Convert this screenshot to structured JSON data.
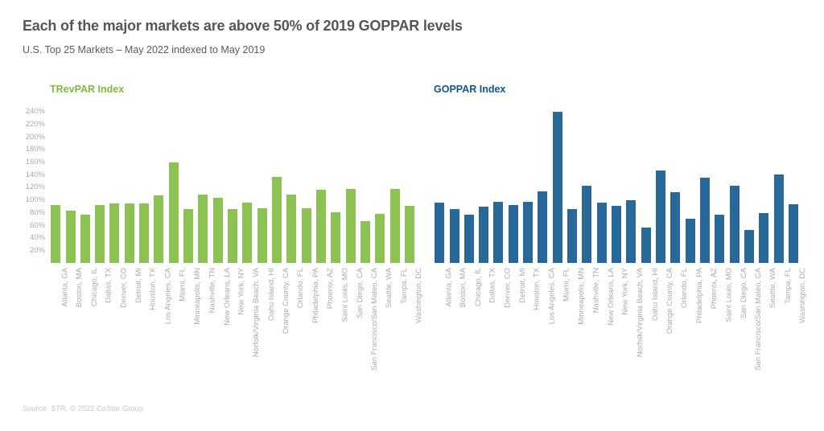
{
  "header": {
    "title": "Each of the major markets are above 50% of 2019 GOPPAR levels",
    "subtitle": "U.S. Top 25 Markets – May 2022 indexed to May 2019"
  },
  "source": "Source: STR. © 2022 CoStar Group",
  "colors": {
    "trevpar_bar": "#8cc252",
    "trevpar_label": "#7fba3d",
    "goppar_bar": "#28699a",
    "goppar_label": "#10578c",
    "title_text": "#55565a",
    "axis_text": "#a9abae",
    "source_text": "#c3c5c8"
  },
  "chart_data": [
    {
      "type": "bar",
      "title": "TRevPAR Index",
      "legend_position": "top-left",
      "grid": false,
      "ylim": [
        0,
        250
      ],
      "yticks": [
        20,
        40,
        60,
        80,
        100,
        120,
        140,
        160,
        180,
        200,
        220,
        240
      ],
      "ytick_suffix": "%",
      "yticks_visible": true,
      "color": "#8cc252",
      "legend_color": "#7fba3d",
      "categories": [
        "Atlanta, GA",
        "Boston, MA",
        "Chicago, IL",
        "Dallas, TX",
        "Denver, CO",
        "Detroit, MI",
        "Houston, TX",
        "Los Angeles, CA",
        "Miami, FL",
        "Minneapolis, MN",
        "Nashville, TN",
        "New Orleans, LA",
        "New York, NY",
        "Norfolk/Virginia Beach, VA",
        "Oahu Island, HI",
        "Orange County, CA",
        "Orlando, FL",
        "Philadelphia, PA",
        "Phoenix, AZ",
        "Saint Louis, MO",
        "San Diego, CA",
        "San Francisco/San Mateo, CA",
        "Seattle, WA",
        "Tampa, FL",
        "Washington, DC"
      ],
      "values": [
        92,
        83,
        77,
        92,
        95,
        95,
        95,
        107,
        159,
        86,
        108,
        103,
        85,
        96,
        87,
        136,
        108,
        87,
        116,
        81,
        117,
        66,
        78,
        118,
        91
      ]
    },
    {
      "type": "bar",
      "title": "GOPPAR Index",
      "legend_position": "top-left",
      "grid": false,
      "ylim": [
        0,
        250
      ],
      "yticks": [
        20,
        40,
        60,
        80,
        100,
        120,
        140,
        160,
        180,
        200,
        220,
        240
      ],
      "ytick_suffix": "%",
      "yticks_visible": false,
      "color": "#28699a",
      "legend_color": "#10578c",
      "categories": [
        "Atlanta, GA",
        "Boston, MA",
        "Chicago, IL",
        "Dallas, TX",
        "Denver, CO",
        "Detroit, MI",
        "Houston, TX",
        "Los Angeles, CA",
        "Miami, FL",
        "Minneapolis, MN",
        "Nashville, TN",
        "New Orleans, LA",
        "New York, NY",
        "Norfolk/Virginia Beach, VA",
        "Oahu Island, HI",
        "Orange County, CA",
        "Orlando, FL",
        "Philadelphia, PA",
        "Phoenix, AZ",
        "Saint Louis, MO",
        "San Diego, CA",
        "San Francisco/San Mateo, CA",
        "Seattle, WA",
        "Tampa, FL",
        "Washington, DC"
      ],
      "values": [
        96,
        86,
        77,
        89,
        97,
        92,
        97,
        114,
        240,
        85,
        123,
        96,
        90,
        100,
        56,
        147,
        112,
        70,
        135,
        77,
        123,
        52,
        79,
        140,
        93
      ]
    }
  ]
}
